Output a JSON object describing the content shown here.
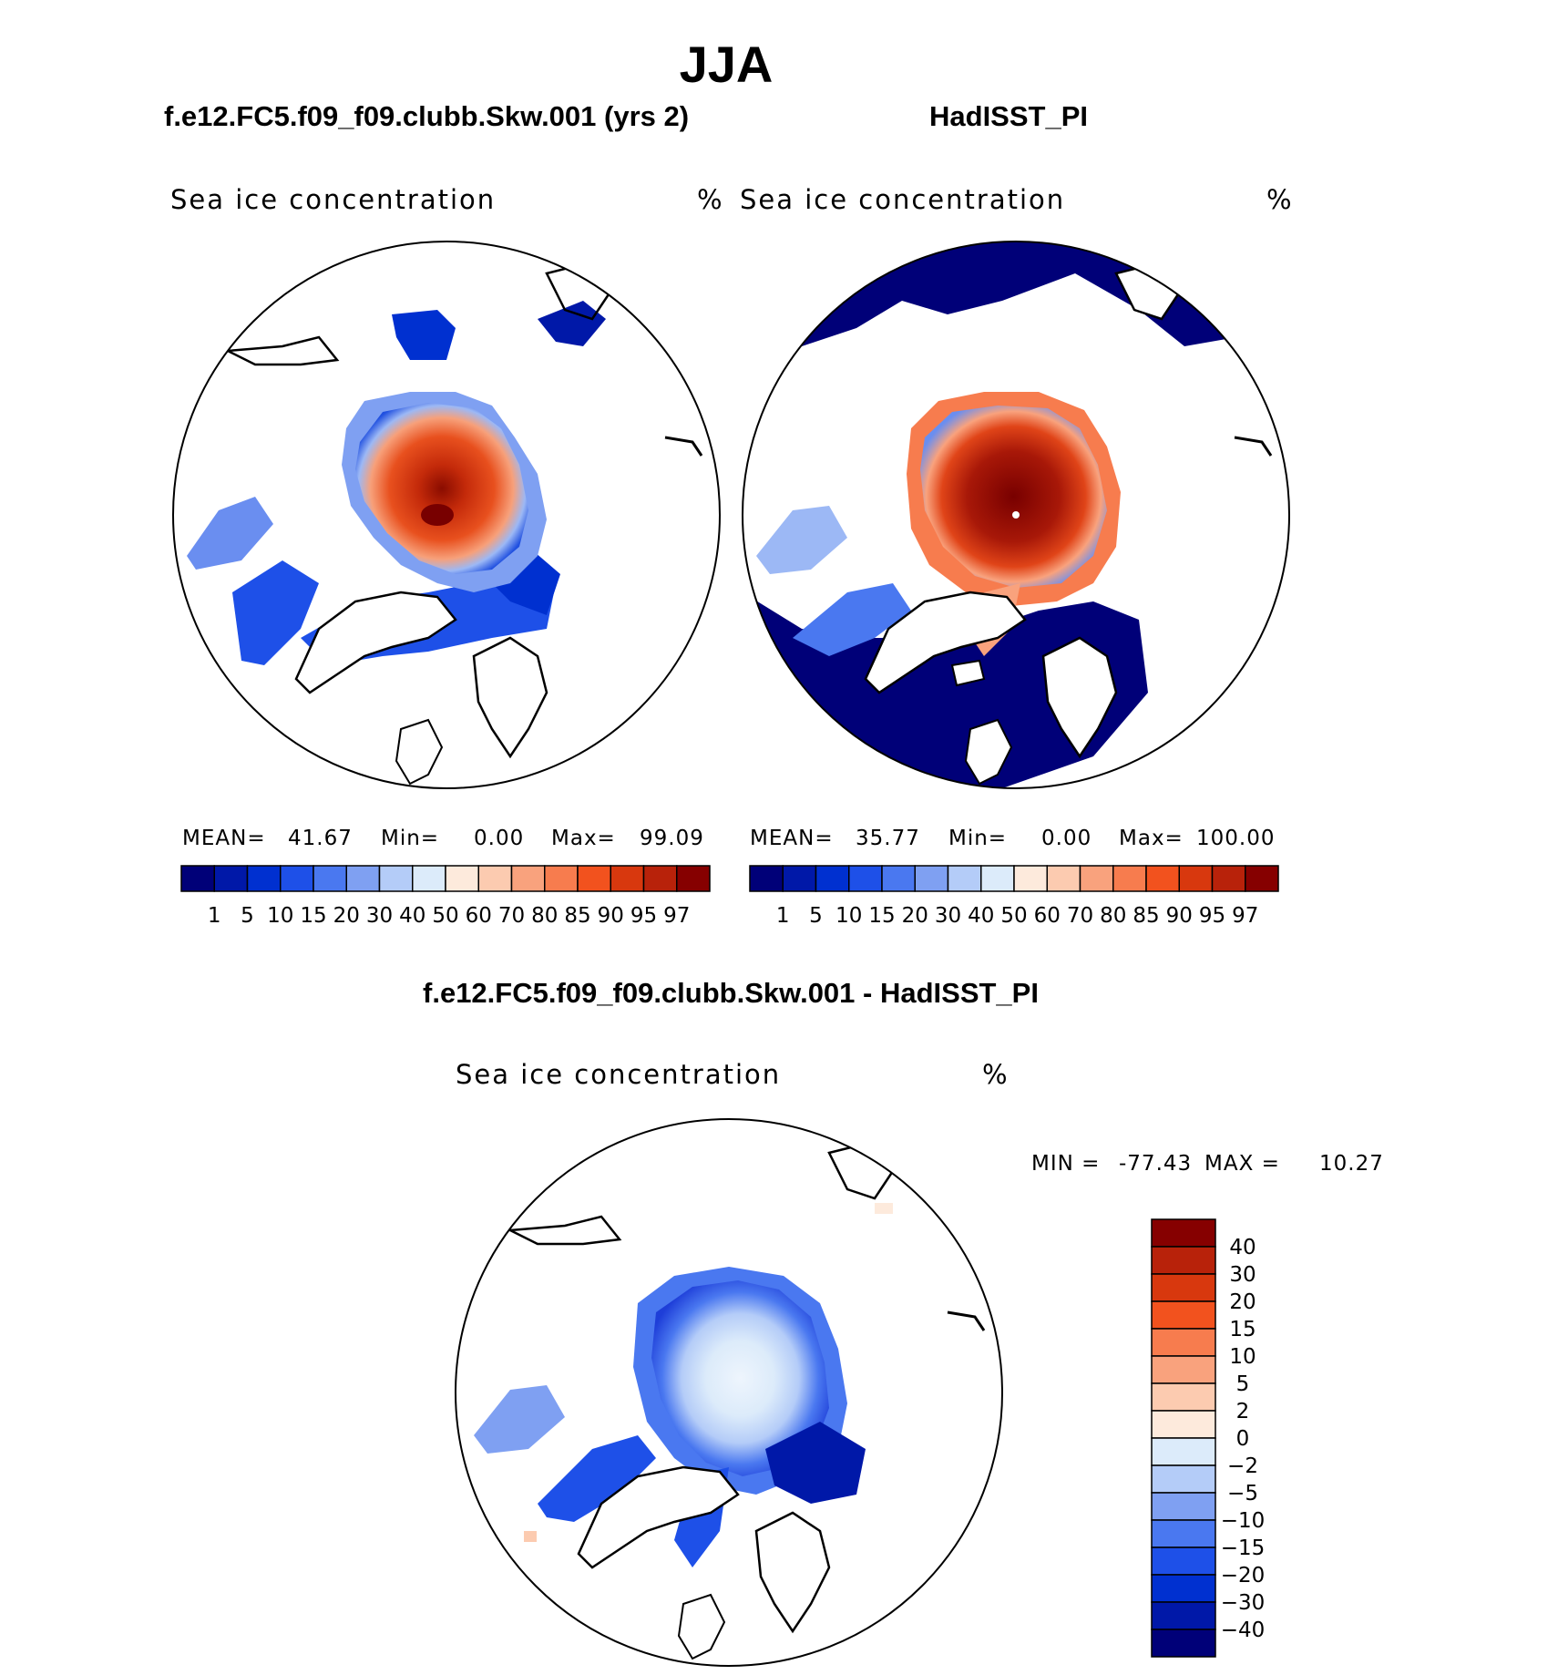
{
  "page": {
    "season_title": "JJA",
    "diff_title": "f.e12.FC5.f09_f09.clubb.Skw.001 - HadISST_PI"
  },
  "panels": [
    {
      "case_title": "f.e12.FC5.f09_f09.clubb.Skw.001 (yrs 2)",
      "variable": "Sea ice concentration",
      "units": "%",
      "mean_label": "MEAN=",
      "mean_value": "41.67",
      "min_label": "Min=",
      "min_value": "0.00",
      "max_label": "Max=",
      "max_value": "99.09"
    },
    {
      "case_title": "HadISST_PI",
      "variable": "Sea ice concentration",
      "units": "%",
      "mean_label": "MEAN=",
      "mean_value": "35.77",
      "min_label": "Min=",
      "min_value": "0.00",
      "max_label": "Max=",
      "max_value": "100.00"
    }
  ],
  "diff_panel": {
    "variable": "Sea ice concentration",
    "units": "%",
    "min_label": "MIN =",
    "min_value": "-77.43",
    "max_label": "MAX =",
    "max_value": "10.27"
  },
  "colorbar_abs": {
    "levels": [
      "1",
      "5",
      "10",
      "15",
      "20",
      "30",
      "40",
      "50",
      "60",
      "70",
      "80",
      "85",
      "90",
      "95",
      "97"
    ],
    "colors": [
      "#000078",
      "#0018a8",
      "#0030d0",
      "#1e50e8",
      "#4a78f0",
      "#7fa0f2",
      "#b4ccf8",
      "#dcebfa",
      "#fdeadc",
      "#fccbb0",
      "#f9a27d",
      "#f77c4e",
      "#f2521e",
      "#d8380e",
      "#b8220a",
      "#860000"
    ]
  },
  "colorbar_diff": {
    "levels": [
      "40",
      "30",
      "20",
      "15",
      "10",
      "5",
      "2",
      "0",
      "-2",
      "-5",
      "-10",
      "-15",
      "-20",
      "-30",
      "-40"
    ],
    "colors": [
      "#860000",
      "#b8220a",
      "#d8380e",
      "#f2521e",
      "#f77c4e",
      "#f9a27d",
      "#fccbb0",
      "#fdeadc",
      "#dcebfa",
      "#b4ccf8",
      "#7fa0f2",
      "#4a78f0",
      "#1e50e8",
      "#0030d0",
      "#0018a8",
      "#000078"
    ]
  }
}
